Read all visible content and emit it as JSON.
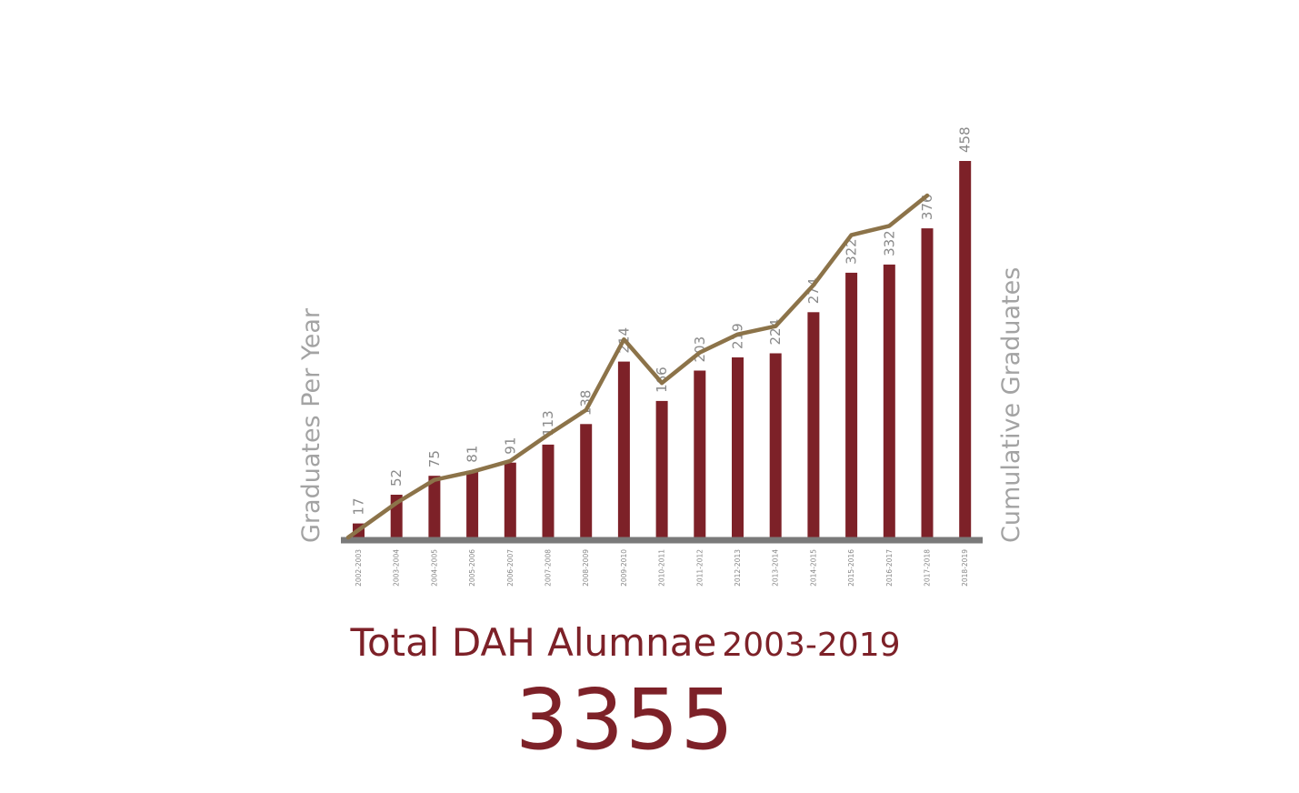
{
  "colors": {
    "bar": "#7d2128",
    "line": "#8c7349",
    "axis": "#7a7a7a",
    "text_gray": "#8a8a8a",
    "title": "#7d2128"
  },
  "caption": {
    "title": "Total DAH Alumnae",
    "years": "2003-2019",
    "total": "3355"
  },
  "chart_data": {
    "type": "bar",
    "title": "",
    "ylabel": "Graduates Per Year",
    "y2label": "Cumulative Graduates",
    "xlabel": "",
    "ylim": [
      0,
      480
    ],
    "grid": false,
    "legend": "none",
    "categories": [
      "2002-2003",
      "2003-2004",
      "2004-2005",
      "2005-2006",
      "2006-2007",
      "2007-2008",
      "2008-2009",
      "2009-2010",
      "2010-2011",
      "2011-2012",
      "2012-2013",
      "2013-2014",
      "2014-2015",
      "2015-2016",
      "2016-2017",
      "2017-2018",
      "2018-2019"
    ],
    "series": [
      {
        "type": "bar",
        "values": [
          17,
          52,
          75,
          81,
          91,
          113,
          138,
          214,
          166,
          203,
          219,
          224,
          274,
          322,
          332,
          376,
          458
        ]
      },
      {
        "type": "line",
        "axis": "right",
        "values": [
          0,
          42,
          70,
          80,
          93,
          125,
          155,
          241,
          188,
          225,
          247,
          257,
          307,
          368,
          379,
          416,
          null
        ]
      }
    ]
  }
}
